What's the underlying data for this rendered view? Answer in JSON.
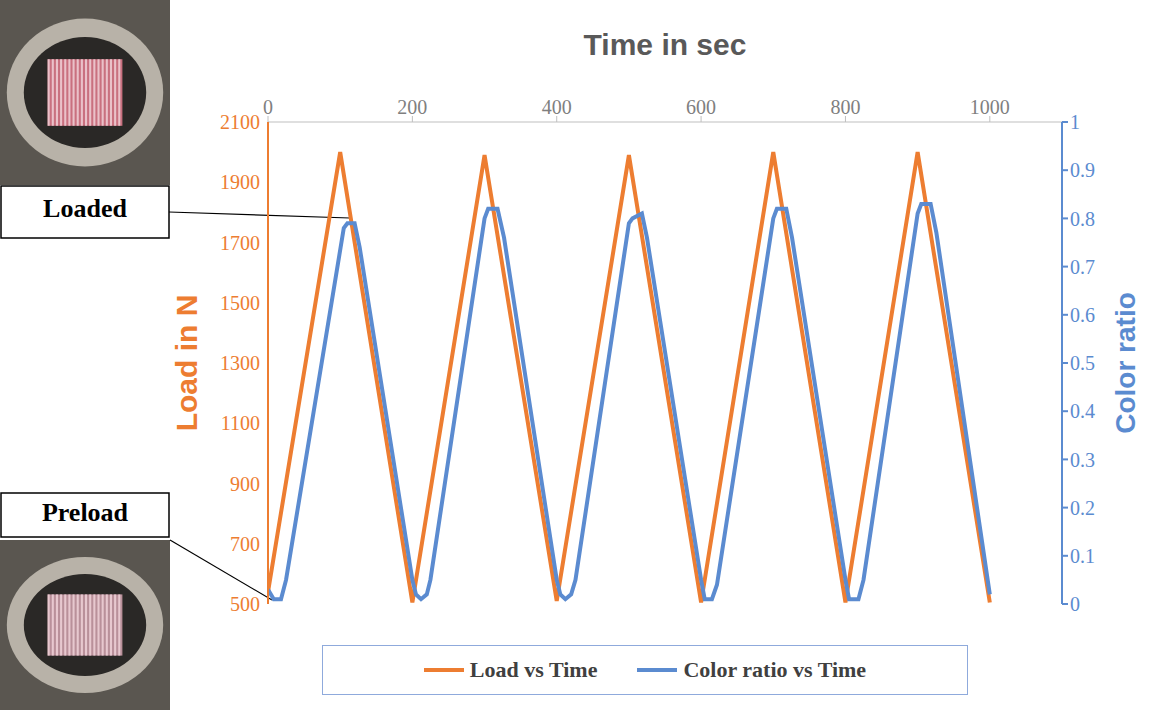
{
  "chart_data": {
    "type": "line",
    "x_label": "Time in sec",
    "y_label": "Load in N",
    "y2_label": "Color ratio",
    "xlim": [
      0,
      1100
    ],
    "xticks": [
      0,
      200,
      400,
      600,
      800,
      1000
    ],
    "ylim": [
      500,
      2100
    ],
    "yticks": [
      500,
      700,
      900,
      1100,
      1300,
      1500,
      1700,
      1900,
      2100
    ],
    "y2lim": [
      0,
      1
    ],
    "y2ticks": [
      0,
      0.1,
      0.2,
      0.3,
      0.4,
      0.5,
      0.6,
      0.7,
      0.8,
      0.9,
      1
    ],
    "grid": false,
    "legend": "bottom",
    "annotations": [
      "Loaded",
      "Preload"
    ],
    "series": [
      {
        "name": "Load vs Time",
        "color": "#ed7d31",
        "x": [
          0,
          100,
          200,
          300,
          400,
          500,
          600,
          700,
          800,
          900,
          1000
        ],
        "values": [
          540,
          2000,
          505,
          1990,
          510,
          1990,
          505,
          2000,
          505,
          2000,
          505
        ]
      },
      {
        "name": "Color ratio vs Time",
        "color": "#5b8bd0",
        "axis": "y2",
        "x": [
          0,
          8,
          18,
          25,
          105,
          110,
          120,
          127,
          200,
          205,
          212,
          220,
          225,
          300,
          305,
          318,
          327,
          400,
          405,
          412,
          420,
          426,
          500,
          505,
          518,
          525,
          600,
          605,
          615,
          622,
          700,
          705,
          718,
          726,
          800,
          805,
          818,
          825,
          900,
          905,
          918,
          926,
          1000
        ],
        "values": [
          0.03,
          0.01,
          0.01,
          0.05,
          0.78,
          0.79,
          0.79,
          0.74,
          0.05,
          0.02,
          0.01,
          0.02,
          0.05,
          0.8,
          0.82,
          0.82,
          0.76,
          0.05,
          0.02,
          0.01,
          0.02,
          0.05,
          0.79,
          0.8,
          0.81,
          0.76,
          0.05,
          0.01,
          0.01,
          0.04,
          0.8,
          0.82,
          0.82,
          0.76,
          0.05,
          0.01,
          0.01,
          0.05,
          0.81,
          0.83,
          0.83,
          0.77,
          0.02
        ]
      }
    ]
  }
}
